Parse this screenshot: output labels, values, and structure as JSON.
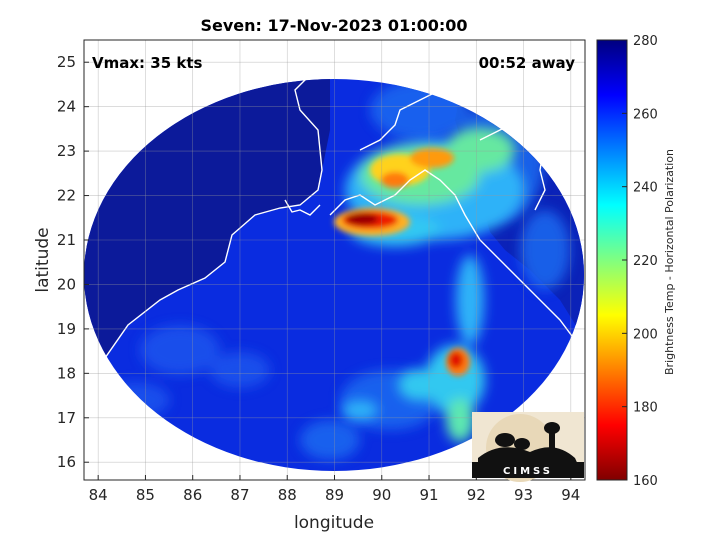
{
  "chart_data": {
    "type": "heatmap",
    "title": "Seven: 17-Nov-2023 01:00:00",
    "xlabel": "longitude",
    "ylabel": "latitude",
    "xlim": [
      83.7,
      94.3
    ],
    "ylim": [
      15.6,
      25.5
    ],
    "xticks": [
      "84",
      "85",
      "86",
      "87",
      "88",
      "89",
      "90",
      "91",
      "92",
      "93",
      "94"
    ],
    "yticks": [
      "16",
      "17",
      "18",
      "19",
      "20",
      "21",
      "22",
      "23",
      "24",
      "25"
    ],
    "grid": true,
    "annotations": {
      "left": "Vmax: 35 kts",
      "right": "00:52 away"
    },
    "colorbar": {
      "label": "Brightness Temp - Horizontal Polarization",
      "range": [
        160,
        280
      ],
      "ticks": [
        "160",
        "180",
        "200",
        "220",
        "240",
        "260",
        "280"
      ],
      "colormap": "jet",
      "colors": [
        "#800000",
        "#ff0000",
        "#ff8000",
        "#ffff00",
        "#80ff80",
        "#00ffff",
        "#0080ff",
        "#0000ff",
        "#000080"
      ]
    },
    "swath": {
      "center_lon": 89.15,
      "center_lat": 20.6,
      "edge_lon_west": 83.8,
      "edge_lon_east": 94.45
    },
    "features": [
      {
        "name": "land-background",
        "value_k": 272
      },
      {
        "name": "ocean-background",
        "value_k": 262
      },
      {
        "name": "cold-core-north",
        "lon": 89.7,
        "lat": 21.4,
        "min_k": 163
      },
      {
        "name": "convection-northeast",
        "lon": 90.8,
        "lat": 22.8,
        "min_k": 190
      },
      {
        "name": "cold-core-south",
        "lon": 91.7,
        "lat": 18.2,
        "min_k": 180
      },
      {
        "name": "rainband-east",
        "lon": 92.0,
        "lat": 19.8,
        "min_k": 230
      }
    ]
  },
  "logo": {
    "text": "CIMSS"
  }
}
